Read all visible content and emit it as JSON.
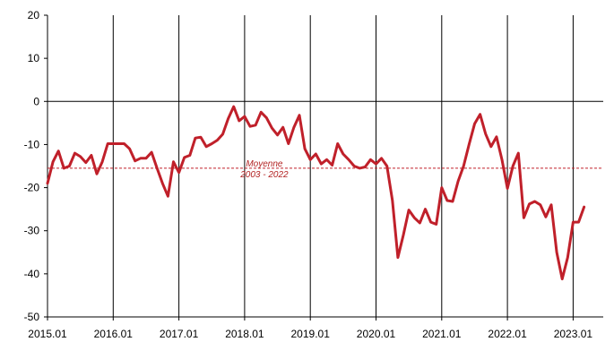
{
  "chart_data": {
    "type": "line",
    "title": "",
    "xlabel": "",
    "ylabel": "",
    "ylim": [
      -50,
      20
    ],
    "yticks": [
      20,
      10,
      0,
      -10,
      -20,
      -30,
      -40,
      -50
    ],
    "xtick_labels": [
      "2015.01",
      "2016.01",
      "2017.01",
      "2018.01",
      "2019.01",
      "2020.01",
      "2021.01",
      "2022.01",
      "2023.01"
    ],
    "xrange_months": [
      0,
      100
    ],
    "grid": "vertical lines at each year",
    "colors": {
      "series": "#c0202a",
      "average": "#c0202a",
      "axis": "#000000"
    },
    "average": {
      "value": -15.5,
      "label_line1": "Moyenne",
      "label_line2": "2003 - 2022"
    },
    "series": [
      {
        "values": [
          -19,
          -14,
          -11.5,
          -15.5,
          -15,
          -12,
          -12.8,
          -14.2,
          -12.5,
          -16.8,
          -14,
          -9.8,
          -9.8,
          -9.8,
          -9.8,
          -11,
          -13.8,
          -13.2,
          -13.2,
          -11.8,
          -15.5,
          -19,
          -22,
          -14,
          -16.5,
          -13,
          -12.5,
          -8.5,
          -8.3,
          -10.5,
          -9.8,
          -9,
          -7.6,
          -4,
          -1.2,
          -4.5,
          -3.5,
          -5.8,
          -5.5,
          -2.5,
          -3.8,
          -6.2,
          -7.8,
          -6,
          -9.8,
          -6,
          -3.2,
          -11,
          -13.5,
          -12.2,
          -14.5,
          -13.5,
          -14.8,
          -9.8,
          -12.2,
          -13.5,
          -15,
          -15.5,
          -15.2,
          -13.5,
          -14.5,
          -13.2,
          -15,
          -23,
          -36.2,
          -31,
          -25.2,
          -27,
          -28.2,
          -25,
          -28,
          -28.5,
          -20,
          -23,
          -23.2,
          -18.5,
          -15,
          -10,
          -5.2,
          -3,
          -7.5,
          -10.5,
          -8.2,
          -13.5,
          -20.2,
          -15,
          -12,
          -27,
          -23.8,
          -23.2,
          -24,
          -26.8,
          -24,
          -35,
          -41.2,
          -36.2,
          -28,
          -28,
          -24.5
        ]
      }
    ]
  }
}
